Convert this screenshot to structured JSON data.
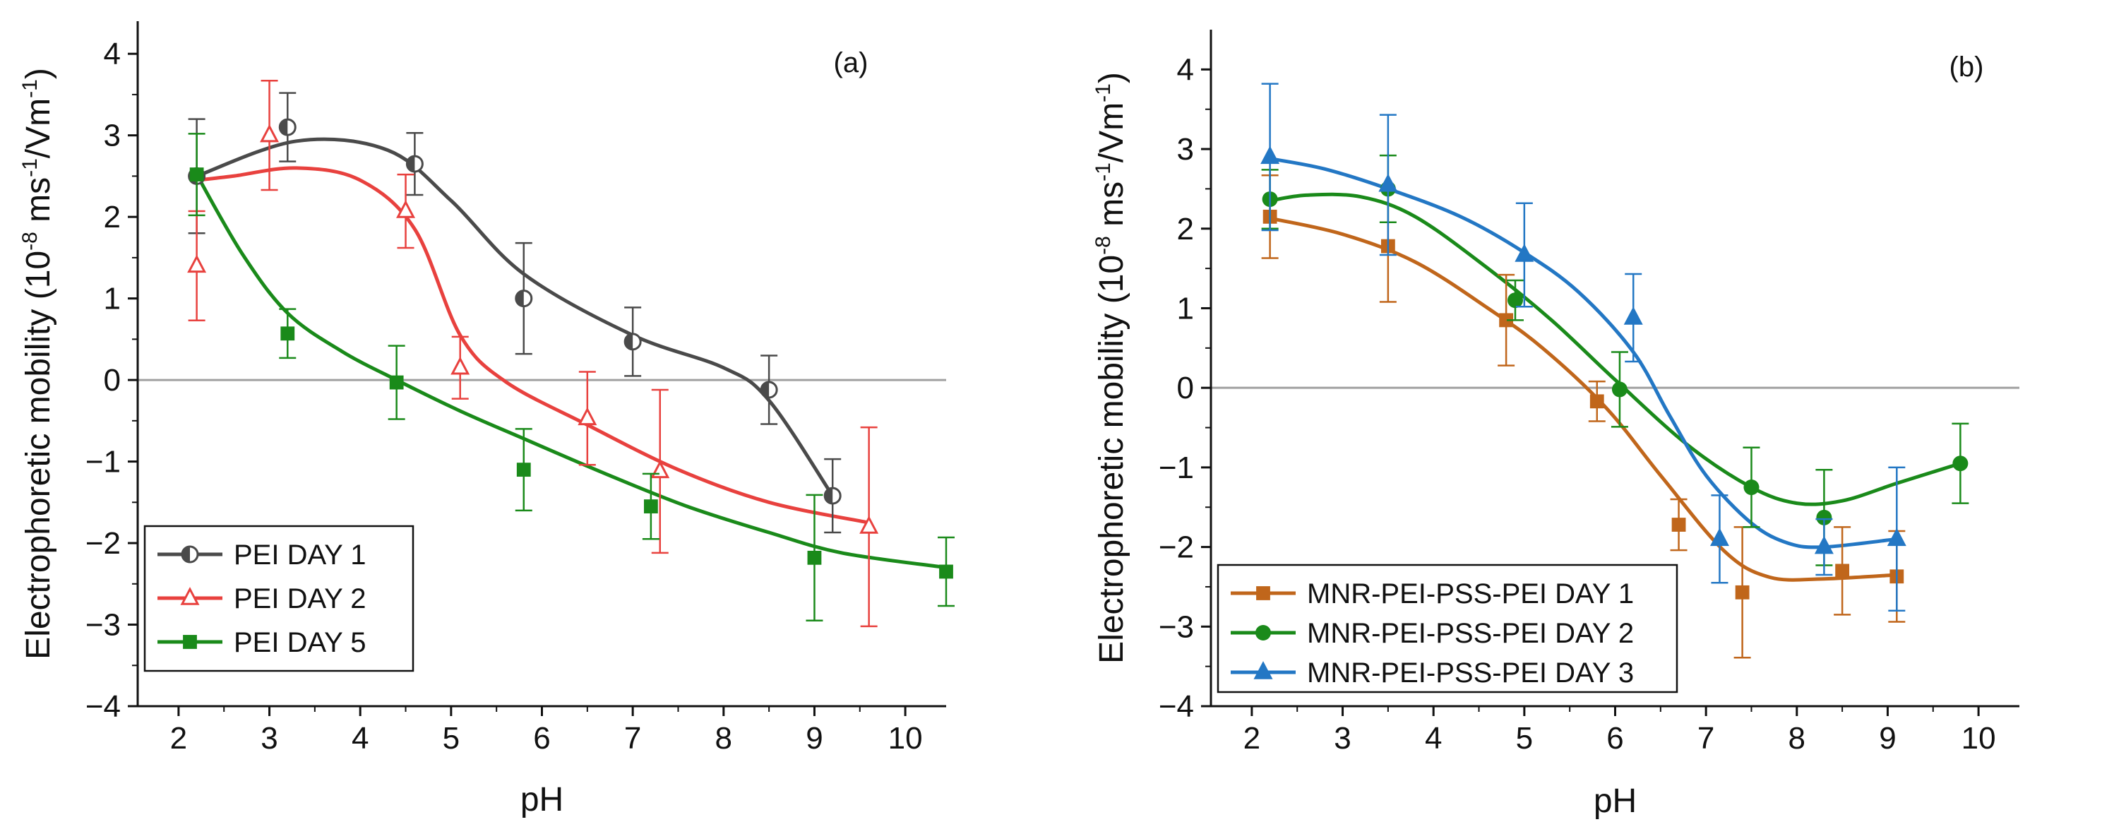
{
  "chart_data": [
    {
      "type": "line",
      "panel": "(a)",
      "xlabel": "pH",
      "ylabel": "Electrophoretic mobility (10^-8 ms^-1/Vm^-1)",
      "ylabel_parts": {
        "pre": "Electrophoretic mobility (10",
        "exp1": "-8",
        "mid": " ms",
        "exp2": "-1",
        "post": "/Vm",
        "exp3": "-1",
        "end": ")"
      },
      "xlim": [
        1.55,
        10.45
      ],
      "ylim": [
        -4,
        4.4
      ],
      "xticks": [
        2,
        3,
        4,
        5,
        6,
        7,
        8,
        9,
        10
      ],
      "xtick_labels": [
        "2",
        "3",
        "4",
        "5",
        "6",
        "7",
        "8",
        "9",
        "10"
      ],
      "yticks": [
        -4,
        -3,
        -2,
        -1,
        0,
        1,
        2,
        3,
        4
      ],
      "ytick_labels": [
        "−4",
        "−3",
        "−2",
        "−1",
        "0",
        "1",
        "2",
        "3",
        "4"
      ],
      "zero_line": true,
      "legend_position": "bottom-left",
      "series": [
        {
          "name": "PEI DAY 1",
          "color": "#4a4a4a",
          "marker": "half-circle",
          "x": [
            2.2,
            3.2,
            4.6,
            5.8,
            7.0,
            8.5,
            9.2
          ],
          "y": [
            2.5,
            3.1,
            2.65,
            1.0,
            0.47,
            -0.12,
            -1.42
          ],
          "err": [
            0.7,
            0.42,
            0.38,
            0.68,
            0.42,
            0.42,
            0.45
          ]
        },
        {
          "name": "PEI DAY 2",
          "color": "#e8413e",
          "marker": "open-triangle",
          "x": [
            2.2,
            3.0,
            4.5,
            5.1,
            6.5,
            7.3,
            9.6
          ],
          "y": [
            1.4,
            3.0,
            2.07,
            0.15,
            -0.47,
            -1.12,
            -1.8
          ],
          "err": [
            0.67,
            0.67,
            0.45,
            0.38,
            0.57,
            1.0,
            1.22
          ]
        },
        {
          "name": "PEI DAY 5",
          "color": "#1a8a1a",
          "marker": "filled-square",
          "x": [
            2.2,
            3.2,
            4.4,
            5.8,
            7.2,
            9.0,
            10.45
          ],
          "y": [
            2.52,
            0.57,
            -0.03,
            -1.1,
            -1.55,
            -2.18,
            -2.35
          ],
          "err": [
            0.5,
            0.3,
            0.45,
            0.5,
            0.4,
            0.77,
            0.42
          ]
        }
      ],
      "fits": [
        {
          "x": [
            2.2,
            3.3,
            4.3,
            5.0,
            5.8,
            7.0,
            8.0,
            8.5,
            9.2
          ],
          "y": [
            2.5,
            2.93,
            2.82,
            2.2,
            1.3,
            0.55,
            0.15,
            -0.25,
            -1.42
          ]
        },
        {
          "x": [
            2.2,
            2.6,
            3.3,
            4.0,
            4.6,
            5.1,
            5.6,
            6.5,
            7.5,
            8.5,
            9.6
          ],
          "y": [
            2.45,
            2.5,
            2.6,
            2.45,
            1.85,
            0.55,
            -0.02,
            -0.55,
            -1.1,
            -1.5,
            -1.75
          ]
        },
        {
          "x": [
            2.2,
            2.7,
            3.2,
            3.8,
            4.4,
            5.1,
            5.8,
            6.7,
            7.6,
            8.5,
            9.3,
            10.45
          ],
          "y": [
            2.52,
            1.55,
            0.82,
            0.35,
            0.0,
            -0.38,
            -0.72,
            -1.15,
            -1.55,
            -1.87,
            -2.12,
            -2.3
          ]
        }
      ]
    },
    {
      "type": "line",
      "panel": "(b)",
      "xlabel": "pH",
      "ylabel": "Electrophoretic mobility (10^-8 ms^-1/Vm^-1)",
      "ylabel_parts": {
        "pre": "Electrophoretic mobility (10",
        "exp1": "-8",
        "mid": " ms",
        "exp2": "-1",
        "post": "/Vm",
        "exp3": "-1",
        "end": ")"
      },
      "xlim": [
        1.55,
        10.45
      ],
      "ylim": [
        -4,
        4.5
      ],
      "xticks": [
        2,
        3,
        4,
        5,
        6,
        7,
        8,
        9,
        10
      ],
      "xtick_labels": [
        "2",
        "3",
        "4",
        "5",
        "6",
        "7",
        "8",
        "9",
        "10"
      ],
      "yticks": [
        -4,
        -3,
        -2,
        -1,
        0,
        1,
        2,
        3,
        4
      ],
      "ytick_labels": [
        "−4",
        "−3",
        "−2",
        "−1",
        "0",
        "1",
        "2",
        "3",
        "4"
      ],
      "zero_line": true,
      "legend_position": "bottom-left",
      "series": [
        {
          "name": "MNR-PEI-PSS-PEI  DAY 1",
          "color": "#c0661b",
          "marker": "filled-square",
          "x": [
            2.2,
            3.5,
            4.8,
            5.8,
            6.7,
            7.4,
            8.5,
            9.1
          ],
          "y": [
            2.15,
            1.78,
            0.85,
            -0.17,
            -1.72,
            -2.57,
            -2.3,
            -2.37
          ],
          "err": [
            0.52,
            0.7,
            0.57,
            0.25,
            0.32,
            0.82,
            0.55,
            0.57
          ]
        },
        {
          "name": "MNR-PEI-PSS-PEI  DAY 2",
          "color": "#1a8a1a",
          "marker": "filled-circle",
          "x": [
            2.2,
            3.5,
            4.9,
            6.05,
            7.5,
            8.3,
            9.8
          ],
          "y": [
            2.37,
            2.5,
            1.1,
            -0.02,
            -1.25,
            -1.63,
            -0.95
          ],
          "err": [
            0.37,
            0.42,
            0.25,
            0.47,
            0.5,
            0.6,
            0.5
          ]
        },
        {
          "name": "MNR-PEI-PSS-PEI  DAY 3",
          "color": "#2377c4",
          "marker": "filled-triangle",
          "x": [
            2.2,
            3.5,
            5.0,
            6.2,
            7.15,
            8.3,
            9.1
          ],
          "y": [
            2.9,
            2.55,
            1.67,
            0.88,
            -1.9,
            -2.0,
            -1.9
          ],
          "err": [
            0.92,
            0.88,
            0.65,
            0.55,
            0.55,
            0.35,
            0.9
          ]
        }
      ],
      "fits": [
        {
          "x": [
            2.2,
            3.0,
            3.8,
            4.6,
            5.2,
            5.9,
            6.5,
            7.2,
            7.7,
            8.3,
            9.1
          ],
          "y": [
            2.13,
            1.93,
            1.58,
            1.0,
            0.5,
            -0.25,
            -1.1,
            -2.05,
            -2.38,
            -2.4,
            -2.35
          ]
        },
        {
          "x": [
            2.2,
            2.6,
            3.2,
            3.8,
            4.6,
            5.3,
            6.0,
            6.8,
            7.5,
            8.0,
            8.5,
            9.1,
            9.8
          ],
          "y": [
            2.35,
            2.42,
            2.4,
            2.15,
            1.5,
            0.85,
            0.1,
            -0.72,
            -1.25,
            -1.45,
            -1.42,
            -1.2,
            -0.95
          ]
        },
        {
          "x": [
            2.2,
            2.8,
            3.5,
            4.3,
            5.0,
            5.6,
            6.2,
            6.6,
            7.0,
            7.5,
            7.9,
            8.3,
            9.1
          ],
          "y": [
            2.88,
            2.75,
            2.5,
            2.15,
            1.7,
            1.2,
            0.45,
            -0.35,
            -1.1,
            -1.7,
            -1.95,
            -2.0,
            -1.9
          ]
        }
      ]
    }
  ]
}
